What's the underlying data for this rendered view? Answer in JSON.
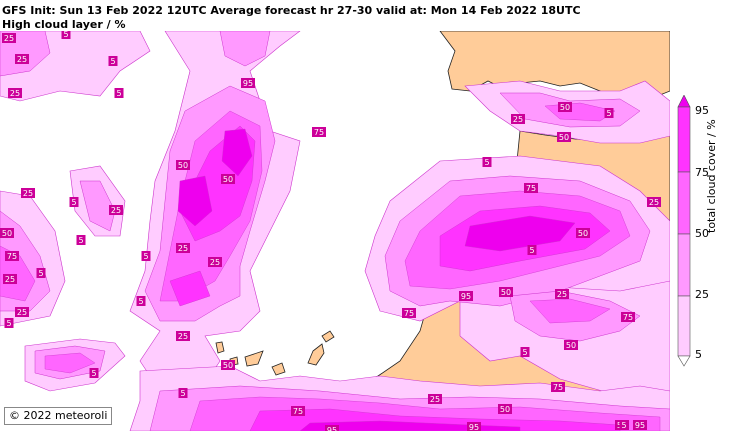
{
  "header": {
    "line1": "GFS Init: Sun 13 Feb 2022 12UTC Average forecast hr 27-30 valid at: Mon 14 Feb 2022 18UTC",
    "line2": "High cloud layer / %"
  },
  "colorbar": {
    "label": "total cloud cover / %",
    "ticks": [
      "95",
      "75",
      "50",
      "25",
      "5"
    ],
    "levels": [
      {
        "min": 5,
        "max": 25,
        "color": "#ffccff"
      },
      {
        "min": 25,
        "max": 50,
        "color": "#ff99ff"
      },
      {
        "min": 50,
        "max": 75,
        "color": "#ff66ff"
      },
      {
        "min": 75,
        "max": 95,
        "color": "#ff33ff"
      },
      {
        "min": 95,
        "max": 100,
        "color": "#ee00ee"
      }
    ]
  },
  "map": {
    "land_color": "#ffcc99",
    "sea_color": "#ffffff",
    "label_box_color": "#cc0099",
    "contour_labels": [
      "25",
      "25",
      "5",
      "5",
      "25",
      "5",
      "25",
      "5",
      "5",
      "50",
      "75",
      "25",
      "5",
      "25",
      "5",
      "50",
      "50",
      "95",
      "75",
      "25",
      "5",
      "25",
      "25",
      "5",
      "25",
      "50",
      "50",
      "5",
      "25",
      "50",
      "5",
      "75",
      "25",
      "5",
      "50",
      "75",
      "95",
      "50",
      "25",
      "75",
      "50",
      "5",
      "75",
      "25",
      "5",
      "5",
      "75",
      "50",
      "95",
      "95",
      "50",
      "5",
      "95"
    ]
  },
  "copyright": "© 2022 meteoroli"
}
